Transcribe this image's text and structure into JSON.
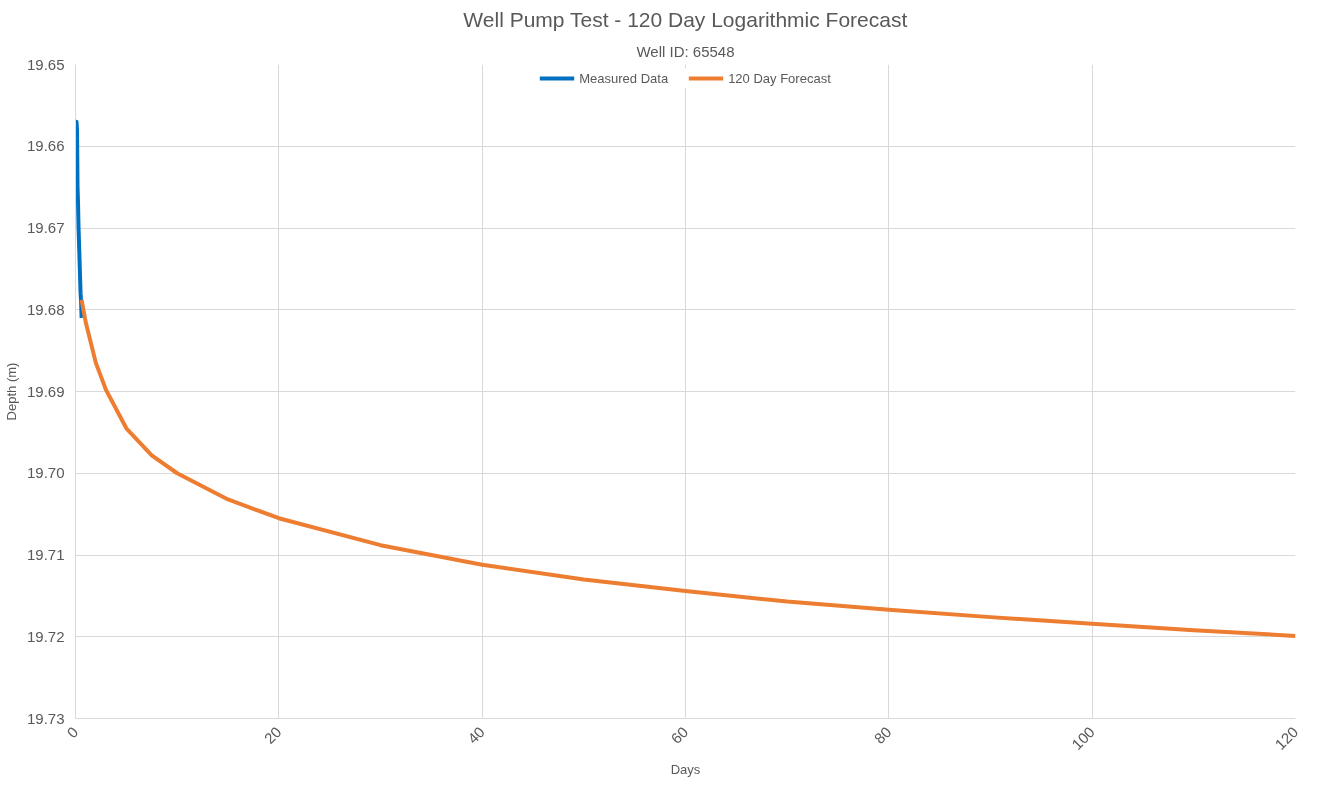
{
  "chart_data": {
    "type": "line",
    "title": "Well Pump Test - 120 Day Logarithmic Forecast",
    "subtitle": "Well ID: 65548",
    "xlabel": "Days",
    "ylabel": "Depth (m)",
    "series": [
      {
        "name": "Measured Data",
        "color": "#0070c0",
        "x": [
          0.05,
          0.1,
          0.15,
          0.2,
          0.25,
          0.3,
          0.35,
          0.4,
          0.45,
          0.5,
          0.55,
          0.6
        ],
        "values": [
          19.659,
          19.657,
          19.658,
          19.665,
          19.667,
          19.67,
          19.672,
          19.674,
          19.676,
          19.678,
          19.679,
          19.681
        ]
      },
      {
        "name": "120 Day Forecast",
        "color": "#ed7d31",
        "x": [
          0.6,
          1,
          2,
          3,
          5,
          7.5,
          10,
          15,
          20,
          30,
          40,
          50,
          60,
          70,
          80,
          90,
          100,
          110,
          120
        ],
        "values": [
          19.6788,
          19.6815,
          19.6865,
          19.6898,
          19.6945,
          19.6978,
          19.7,
          19.7032,
          19.7055,
          19.7088,
          19.7112,
          19.713,
          19.7144,
          19.7157,
          19.7167,
          19.7176,
          19.7184,
          19.7192,
          19.7199
        ]
      }
    ],
    "xlim": [
      0,
      120
    ],
    "xticks": [
      0,
      20,
      40,
      60,
      80,
      100,
      120
    ],
    "ylim": [
      19.73,
      19.65
    ],
    "yticks": [
      {
        "value": 19.65,
        "label": "19.65"
      },
      {
        "value": 19.66,
        "label": "19.66"
      },
      {
        "value": 19.67,
        "label": "19.67"
      },
      {
        "value": 19.68,
        "label": "19.68"
      },
      {
        "value": 19.69,
        "label": "19.69"
      },
      {
        "value": 19.7,
        "label": "19.70"
      },
      {
        "value": 19.71,
        "label": "19.71"
      },
      {
        "value": 19.72,
        "label": "19.72"
      },
      {
        "value": 19.73,
        "label": "19.73"
      }
    ],
    "grid": true,
    "legend": "top",
    "marker": "none",
    "line_style": "solid"
  }
}
